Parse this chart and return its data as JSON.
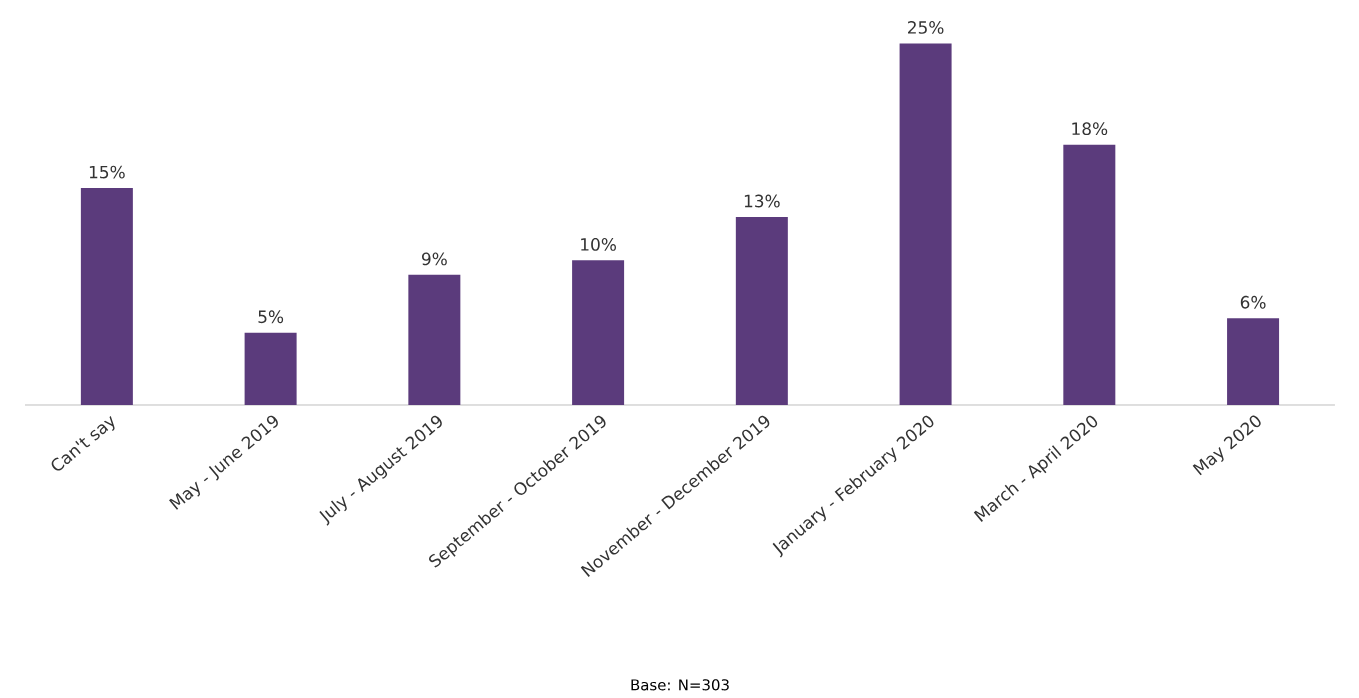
{
  "chart_data": {
    "type": "bar",
    "categories": [
      "Can't say",
      "May - June 2019",
      "July - August 2019",
      "September - October 2019",
      "November - December 2019",
      "January - February 2020",
      "March - April 2020",
      "May 2020"
    ],
    "values": [
      15,
      5,
      9,
      10,
      13,
      25,
      18,
      6
    ],
    "value_labels": [
      "15%",
      "5%",
      "9%",
      "10%",
      "13%",
      "25%",
      "18%",
      "6%"
    ],
    "color": "#5b3b7c",
    "annotations": [
      "Base: N=303"
    ]
  }
}
